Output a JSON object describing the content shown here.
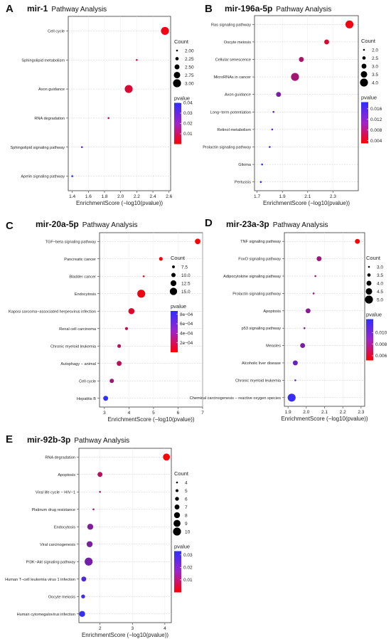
{
  "chart_data": [
    {
      "type": "scatter",
      "panel": "A",
      "title": "mir-1",
      "subtitle": "Pathway Analysis",
      "xlabel": "EnrichmentScore (−log10(pvalue))",
      "xlim": [
        1.35,
        2.62
      ],
      "xticks": [
        1.4,
        1.6,
        1.8,
        2.0,
        2.2,
        2.4,
        2.6
      ],
      "xticklabels": [
        "1.4",
        "1.6",
        "1.8",
        "2.0",
        "2.2",
        "2.4",
        "2.6"
      ],
      "categories": [
        "Cell cycle",
        "Sphingolipid metabolism",
        "Axon guidance",
        "RNA degradation",
        "Sphingolipid signaling pathway",
        "Apelin signaling pathway"
      ],
      "x": [
        2.55,
        2.2,
        2.1,
        1.85,
        1.52,
        1.4
      ],
      "count": [
        3,
        2,
        3,
        2,
        2,
        2
      ],
      "pvalue": [
        0.003,
        0.006,
        0.008,
        0.014,
        0.03,
        0.04
      ],
      "size_legend": {
        "title": "Count",
        "values": [
          2.0,
          2.25,
          2.5,
          2.75,
          3.0
        ],
        "labels": [
          "2.00",
          "2.25",
          "2.50",
          "2.75",
          "3.00"
        ],
        "range": [
          2,
          3
        ]
      },
      "color_legend": {
        "title": "pvalue",
        "min": 0.0,
        "max": 0.04,
        "ticks": [
          0.04,
          0.03,
          0.02,
          0.01
        ],
        "labels": [
          "0.04",
          "0.03",
          "0.02",
          "0.01"
        ]
      },
      "grid": true
    },
    {
      "type": "scatter",
      "panel": "B",
      "title": "mir-196a-5p",
      "subtitle": "Pathway Analysis",
      "xlabel": "EnrichmentScore (−log10(pvalue))",
      "xlim": [
        1.68,
        2.5
      ],
      "xticks": [
        1.7,
        1.9,
        2.1,
        2.3
      ],
      "xticklabels": [
        "1.7",
        "1.9",
        "2.1",
        "2.3"
      ],
      "categories": [
        "Ras signaling pathway",
        "Oocyte meiosis",
        "Cellular senescence",
        "MicroRNAs in cancer",
        "Axon guidance",
        "Long−term potentiation",
        "Retinol metabolism",
        "Prolactin signaling pathway",
        "Glioma",
        "Pertussis"
      ],
      "x": [
        2.43,
        2.25,
        2.05,
        2.0,
        1.87,
        1.83,
        1.82,
        1.8,
        1.74,
        1.73
      ],
      "count": [
        4,
        3,
        3,
        4,
        3,
        2,
        2,
        2,
        2,
        2
      ],
      "pvalue": [
        0.004,
        0.006,
        0.009,
        0.01,
        0.013,
        0.015,
        0.015,
        0.016,
        0.018,
        0.018
      ],
      "size_legend": {
        "title": "Count",
        "values": [
          2.0,
          2.5,
          3.0,
          3.5,
          4.0
        ],
        "labels": [
          "2.0",
          "2.5",
          "3.0",
          "3.5",
          "4.0"
        ],
        "range": [
          2,
          4
        ]
      },
      "color_legend": {
        "title": "pvalue",
        "min": 0.003,
        "max": 0.0185,
        "ticks": [
          0.016,
          0.012,
          0.008,
          0.004
        ],
        "labels": [
          "0.016",
          "0.012",
          "0.008",
          "0.004"
        ]
      },
      "grid": true
    },
    {
      "type": "scatter",
      "panel": "C",
      "title": "mir-20a-5p",
      "subtitle": "Pathway Analysis",
      "xlabel": "EnrichmentScore (−log10(pvalue))",
      "xlim": [
        2.8,
        7.0
      ],
      "xticks": [
        3,
        4,
        5,
        6,
        7
      ],
      "xticklabels": [
        "3",
        "4",
        "5",
        "6",
        "7"
      ],
      "categories": [
        "TGF−beta signaling pathway",
        "Pancreatic cancer",
        "Bladder cancer",
        "Endocytosis",
        "Kaposi sarcoma−associated herpesvirus infection",
        "Renal cell carcinoma",
        "Chronic myeloid leukemia",
        "Autophagy − animal",
        "Cell cycle",
        "Hepatitis B"
      ],
      "x": [
        6.8,
        5.3,
        4.6,
        4.5,
        4.1,
        3.9,
        3.6,
        3.6,
        3.3,
        3.05
      ],
      "count": [
        12,
        9,
        6,
        16,
        13,
        8,
        9,
        11,
        10,
        11
      ],
      "pvalue": [
        0.0,
        2e-05,
        5e-05,
        8e-05,
        0.00015,
        0.00025,
        0.0003,
        0.0003,
        0.0004,
        0.00085
      ],
      "size_legend": {
        "title": "Count",
        "values": [
          7.5,
          10.0,
          12.5,
          15.0
        ],
        "labels": [
          "7.5",
          "10.0",
          "12.5",
          "15.0"
        ],
        "range": [
          6,
          16
        ]
      },
      "color_legend": {
        "title": "pvalue",
        "min": 0.0,
        "max": 0.00087,
        "ticks": [
          0.0008,
          0.0006,
          0.0004,
          0.0002
        ],
        "labels": [
          "8e−04",
          "6e−04",
          "4e−04",
          "2e−04"
        ]
      },
      "grid": true
    },
    {
      "type": "scatter",
      "panel": "D",
      "title": "mir-23a-3p",
      "subtitle": "Pathway Analysis",
      "xlabel": "EnrichmentScore (−log10(pvalue))",
      "xlim": [
        1.88,
        2.32
      ],
      "xticks": [
        1.9,
        2.0,
        2.1,
        2.2,
        2.3
      ],
      "xticklabels": [
        "1.9",
        "2.0",
        "2.1",
        "2.2",
        "2.3"
      ],
      "categories": [
        "TNF signaling pathway",
        "FoxO signaling pathway",
        "Adipocytokine signaling pathway",
        "Prolactin signaling pathway",
        "Apoptosis",
        "p53 signaling pathway",
        "Measles",
        "Alcoholic liver disease",
        "Chronic myeloid leukemia",
        "Chemical carcinogenesis − reactive oxygen species"
      ],
      "x": [
        2.28,
        2.07,
        2.05,
        2.04,
        2.01,
        1.99,
        1.98,
        1.94,
        1.94,
        1.92
      ],
      "count": [
        4,
        4,
        3,
        3,
        4,
        3,
        4,
        4,
        3,
        5
      ],
      "pvalue": [
        0.0053,
        0.0085,
        0.0088,
        0.0089,
        0.0093,
        0.0096,
        0.0097,
        0.0105,
        0.0105,
        0.012
      ],
      "size_legend": {
        "title": "Count",
        "values": [
          3.0,
          3.5,
          4.0,
          4.5,
          5.0
        ],
        "labels": [
          "3.0",
          "3.5",
          "4.0",
          "4.5",
          "5.0"
        ],
        "range": [
          3,
          5
        ]
      },
      "color_legend": {
        "title": "pvalue",
        "min": 0.0052,
        "max": 0.0123,
        "ticks": [
          0.01,
          0.008,
          0.006
        ],
        "labels": [
          "0.010",
          "0.008",
          "0.006"
        ]
      },
      "grid": true
    },
    {
      "type": "scatter",
      "panel": "E",
      "title": "mir-92b-3p",
      "subtitle": "Pathway Analysis",
      "xlabel": "EnrichmentScore (−log10(pvalue))",
      "xlim": [
        1.35,
        4.2
      ],
      "xticks": [
        2,
        3,
        4
      ],
      "xticklabels": [
        "2",
        "3",
        "4"
      ],
      "categories": [
        "RNA degradation",
        "Apoptosis",
        "Viral life cycle − HIV−1",
        "Platinum drug resistance",
        "Endocytosis",
        "Viral carcinogenesis",
        "PI3K−Akt signaling pathway",
        "Human T−cell leukemia virus 1 infection",
        "Oocyte meiosis",
        "Human cytomegalovirus infection"
      ],
      "x": [
        4.05,
        2.0,
        2.0,
        1.8,
        1.7,
        1.68,
        1.65,
        1.5,
        1.48,
        1.45
      ],
      "count": [
        9,
        7,
        4,
        4,
        8,
        8,
        10,
        7,
        6,
        8
      ],
      "pvalue": [
        0.0001,
        0.012,
        0.013,
        0.018,
        0.02,
        0.021,
        0.022,
        0.028,
        0.03,
        0.032
      ],
      "size_legend": {
        "title": "Count",
        "values": [
          4,
          5,
          6,
          7,
          8,
          9,
          10
        ],
        "labels": [
          "4",
          "5",
          "6",
          "7",
          "8",
          "9",
          "10"
        ],
        "range": [
          4,
          10
        ]
      },
      "color_legend": {
        "title": "pvalue",
        "min": 0.0,
        "max": 0.033,
        "ticks": [
          0.03,
          0.02,
          0.01
        ],
        "labels": [
          "0.03",
          "0.02",
          "0.01"
        ]
      },
      "grid": true
    }
  ],
  "colors": {
    "low_pvalue": "#ff0000",
    "high_pvalue": "#2f2fff",
    "dot_outline": "none",
    "grid": "#c8c8c8"
  }
}
